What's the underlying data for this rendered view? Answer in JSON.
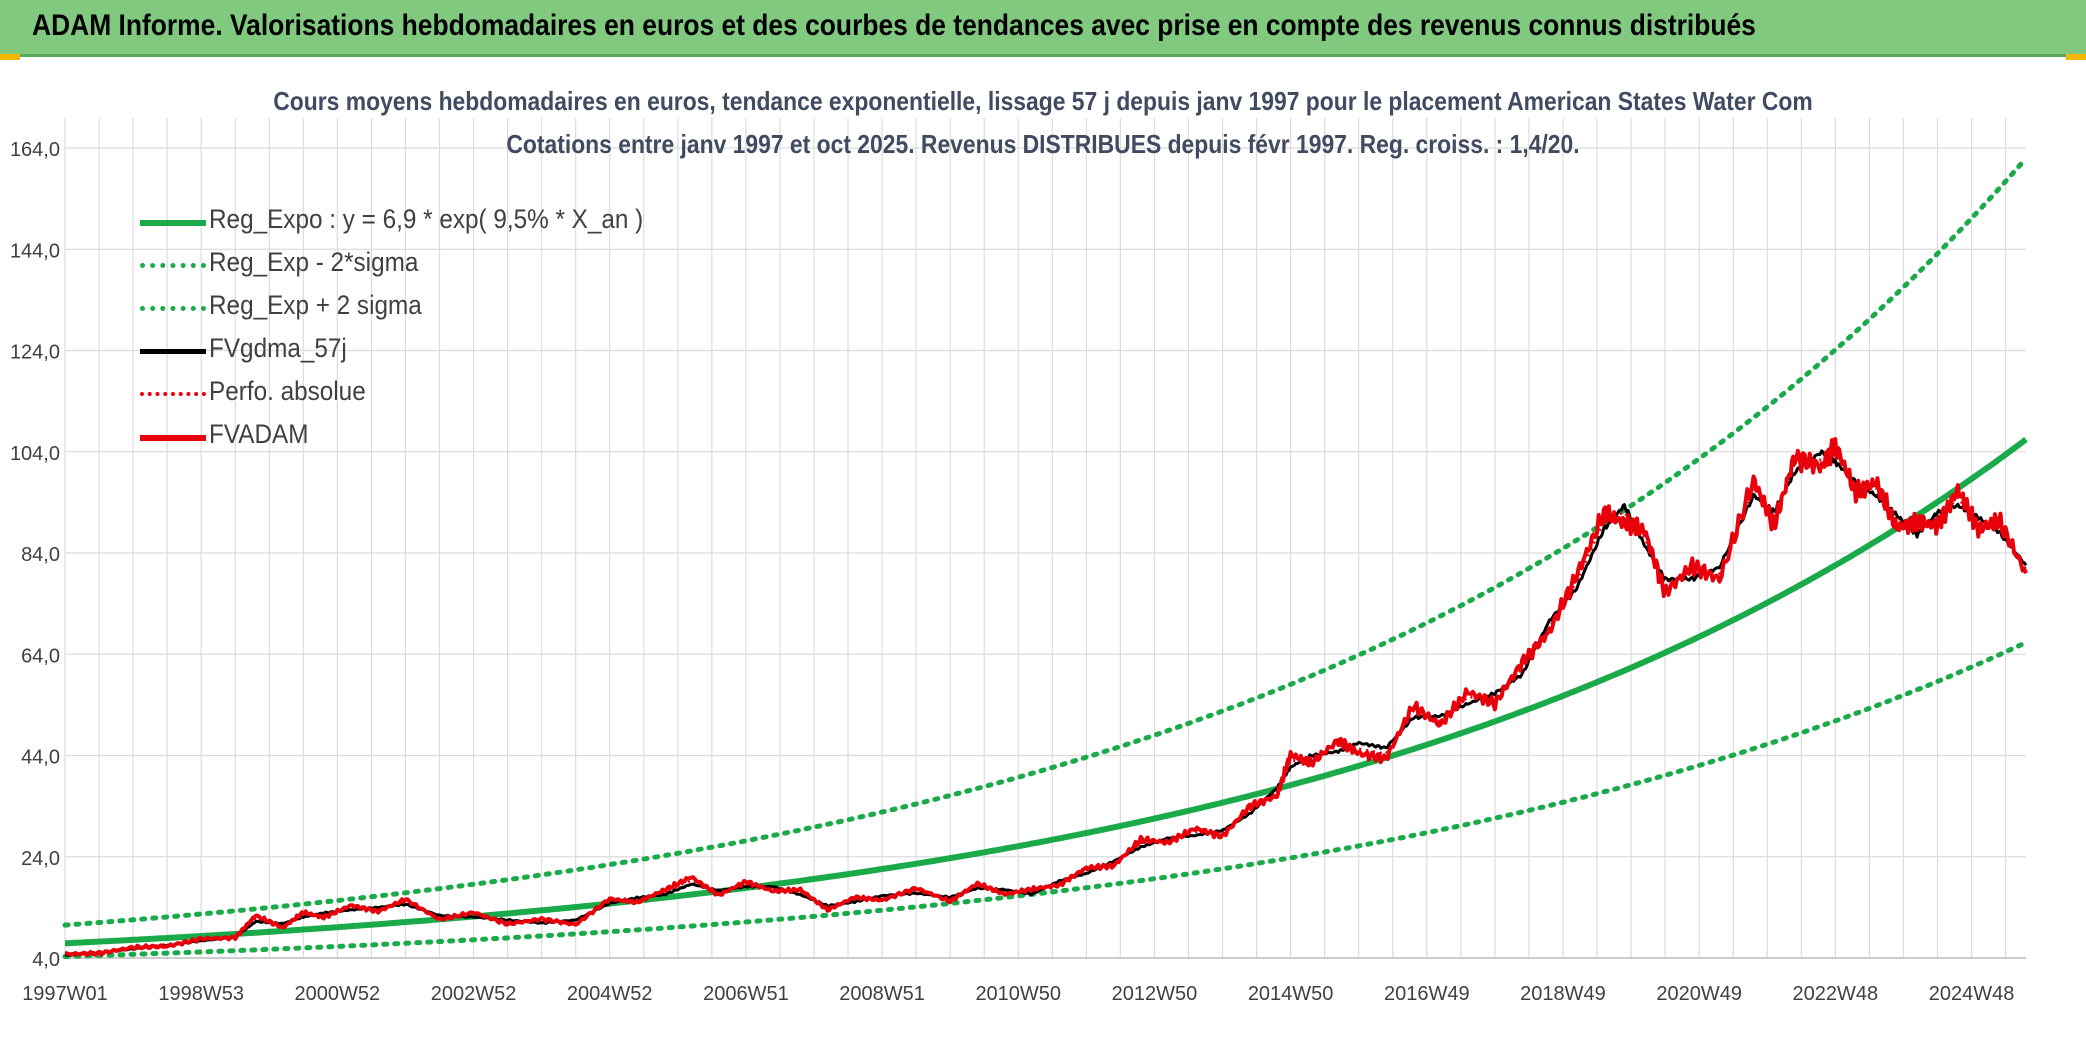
{
  "header": {
    "title": "ADAM Informe. Valorisations hebdomadaires en euros et des courbes de tendances avec prise en compte des revenus connus distribués"
  },
  "chart_data": {
    "type": "line",
    "title": "Cours moyens hebdomadaires en euros, tendance exponentielle, lissage 57 j depuis janv 1997 pour le placement American States Water Com",
    "subtitle": "Cotations entre janv 1997 et oct 2025. Revenus DISTRIBUES depuis févr 1997. Reg. croiss. : 1,4/20.",
    "xlabel": "",
    "ylabel": "",
    "ylim": [
      4.0,
      164.0
    ],
    "yticks": [
      "4,0",
      "24,0",
      "44,0",
      "64,0",
      "84,0",
      "104,0",
      "124,0",
      "144,0",
      "164,0"
    ],
    "xlim": [
      1997.0,
      2025.8
    ],
    "xticks": [
      {
        "label": "1997W01",
        "x": 1997.0
      },
      {
        "label": "1998W53",
        "x": 1999.0
      },
      {
        "label": "2000W52",
        "x": 2001.0
      },
      {
        "label": "2002W52",
        "x": 2003.0
      },
      {
        "label": "2004W52",
        "x": 2005.0
      },
      {
        "label": "2006W51",
        "x": 2007.0
      },
      {
        "label": "2008W51",
        "x": 2009.0
      },
      {
        "label": "2010W50",
        "x": 2011.0
      },
      {
        "label": "2012W50",
        "x": 2013.0
      },
      {
        "label": "2014W50",
        "x": 2015.0
      },
      {
        "label": "2016W49",
        "x": 2017.0
      },
      {
        "label": "2018W49",
        "x": 2019.0
      },
      {
        "label": "2020W49",
        "x": 2021.0
      },
      {
        "label": "2022W48",
        "x": 2023.0
      },
      {
        "label": "2024W48",
        "x": 2025.0
      }
    ],
    "grid": true,
    "legend_position": "top-left",
    "series": [
      {
        "name": "Reg_Expo : y = 6,9 * exp( 9,5% *  X_an )",
        "kind": "exponential-trend",
        "a": 6.9,
        "rate": 0.095,
        "x0": 1997.0,
        "color": "#1aaa4a",
        "style": "solid"
      },
      {
        "name": "Reg_Exp - 2*sigma",
        "kind": "exponential-trend",
        "a": 4.3,
        "rate": 0.095,
        "x0": 1997.0,
        "color": "#1aaa4a",
        "style": "dotted"
      },
      {
        "name": "Reg_Exp + 2 sigma",
        "kind": "exponential-trend",
        "a": 10.5,
        "rate": 0.095,
        "x0": 1997.0,
        "color": "#1aaa4a",
        "style": "dotted"
      },
      {
        "name": "FVgdma_57j",
        "kind": "moving-average",
        "color": "#000000",
        "style": "solid",
        "x": [
          1997.0,
          1997.5,
          1998.0,
          1998.5,
          1999.0,
          1999.5,
          1999.8,
          2000.2,
          2000.5,
          2000.8,
          2001.2,
          2001.6,
          2002.0,
          2002.5,
          2003.0,
          2003.5,
          2004.0,
          2004.5,
          2005.0,
          2005.4,
          2005.8,
          2006.2,
          2006.6,
          2007.0,
          2007.4,
          2007.8,
          2008.2,
          2008.6,
          2009.0,
          2009.5,
          2010.0,
          2010.4,
          2010.8,
          2011.2,
          2011.6,
          2012.0,
          2012.4,
          2012.8,
          2013.2,
          2013.6,
          2014.0,
          2014.4,
          2014.8,
          2015.0,
          2015.3,
          2015.7,
          2016.0,
          2016.4,
          2016.8,
          2017.2,
          2017.6,
          2018.0,
          2018.4,
          2018.8,
          2019.2,
          2019.6,
          2019.9,
          2020.2,
          2020.5,
          2020.9,
          2021.3,
          2021.8,
          2022.1,
          2022.4,
          2022.8,
          2023.0,
          2023.3,
          2023.6,
          2023.9,
          2024.2,
          2024.5,
          2024.8,
          2025.1,
          2025.4,
          2025.8
        ],
        "y": [
          4.5,
          5.0,
          5.8,
          6.5,
          7.4,
          8.1,
          11.2,
          10.8,
          12.1,
          12.9,
          13.5,
          14.0,
          14.6,
          12.4,
          12.1,
          11.5,
          10.9,
          11.5,
          14.8,
          15.9,
          16.5,
          18.6,
          17.3,
          18.1,
          18.1,
          16.5,
          14.3,
          15.1,
          16.3,
          16.8,
          16.0,
          17.8,
          17.5,
          16.6,
          19.2,
          20.7,
          23.1,
          25.9,
          27.7,
          28.2,
          29.2,
          32.5,
          37.6,
          41.7,
          44.0,
          44.8,
          46.5,
          45.5,
          51.5,
          51.8,
          54.2,
          56.3,
          60.0,
          70.6,
          77.0,
          88.7,
          93.4,
          85.5,
          78.8,
          78.9,
          81.2,
          95.4,
          92.1,
          99.9,
          104.0,
          102.0,
          98.0,
          95.3,
          91.5,
          87.6,
          92.0,
          93.4,
          91.0,
          88.2,
          81.6
        ]
      },
      {
        "name": "Perfo. absolue",
        "kind": "performance",
        "color": "#e8000b",
        "style": "dotted",
        "x": [
          1997.0,
          1997.5,
          1998.0,
          1998.5,
          1999.0,
          1999.5,
          1999.8,
          2000.2,
          2000.5,
          2000.8,
          2001.2,
          2001.6,
          2002.0,
          2002.5,
          2003.0,
          2003.5,
          2004.0,
          2004.5,
          2005.0,
          2005.4,
          2005.8,
          2006.2,
          2006.6,
          2007.0,
          2007.4,
          2007.8,
          2008.2,
          2008.6,
          2009.0,
          2009.5,
          2010.0,
          2010.4,
          2010.8,
          2011.2,
          2011.6,
          2012.0,
          2012.4,
          2012.8,
          2013.2,
          2013.6,
          2014.0,
          2014.4,
          2014.8,
          2015.0,
          2015.3,
          2015.7,
          2016.0,
          2016.4,
          2016.8,
          2017.2,
          2017.6,
          2018.0,
          2018.4,
          2018.8,
          2019.2,
          2019.6,
          2019.9,
          2020.2,
          2020.5,
          2020.9,
          2021.3,
          2021.8,
          2022.1,
          2022.4,
          2022.8,
          2023.0,
          2023.3,
          2023.6,
          2023.9,
          2024.2,
          2024.5,
          2024.8,
          2025.1,
          2025.4,
          2025.8
        ],
        "y": [
          4.6,
          5.2,
          5.9,
          6.7,
          7.6,
          8.4,
          11.8,
          10.4,
          12.6,
          12.4,
          14.0,
          13.6,
          15.2,
          12.0,
          12.6,
          11.1,
          11.3,
          11.0,
          15.3,
          15.4,
          17.0,
          19.4,
          16.8,
          18.7,
          17.6,
          17.1,
          13.9,
          15.6,
          15.8,
          17.4,
          15.6,
          18.3,
          17.0,
          17.2,
          18.8,
          21.4,
          22.6,
          26.8,
          27.2,
          29.0,
          28.6,
          33.4,
          36.8,
          43.0,
          43.1,
          46.0,
          45.3,
          44.3,
          52.8,
          50.7,
          55.6,
          55.1,
          61.4,
          69.3,
          78.4,
          90.3,
          92.1,
          87.1,
          77.5,
          80.3,
          79.9,
          97.0,
          90.6,
          101.6,
          102.4,
          103.5,
          96.7,
          96.8,
          90.1,
          89.0,
          90.6,
          95.0,
          89.6,
          89.5,
          80.7
        ]
      },
      {
        "name": "FVADAM",
        "kind": "weekly-price",
        "color": "#e8000b",
        "style": "solid",
        "x": [
          1997.0,
          1997.5,
          1998.0,
          1998.5,
          1999.0,
          1999.5,
          1999.8,
          2000.2,
          2000.5,
          2000.8,
          2001.2,
          2001.6,
          2002.0,
          2002.5,
          2003.0,
          2003.5,
          2004.0,
          2004.5,
          2005.0,
          2005.4,
          2005.8,
          2006.2,
          2006.6,
          2007.0,
          2007.4,
          2007.8,
          2008.2,
          2008.6,
          2009.0,
          2009.5,
          2010.0,
          2010.4,
          2010.8,
          2011.2,
          2011.6,
          2012.0,
          2012.4,
          2012.8,
          2013.2,
          2013.6,
          2014.0,
          2014.4,
          2014.8,
          2015.0,
          2015.3,
          2015.7,
          2016.0,
          2016.4,
          2016.8,
          2017.2,
          2017.6,
          2018.0,
          2018.4,
          2018.8,
          2019.2,
          2019.6,
          2019.9,
          2020.2,
          2020.5,
          2020.9,
          2021.3,
          2021.8,
          2022.1,
          2022.4,
          2022.8,
          2023.0,
          2023.3,
          2023.6,
          2023.9,
          2024.2,
          2024.5,
          2024.8,
          2025.1,
          2025.4,
          2025.8
        ],
        "y": [
          4.8,
          4.9,
          6.1,
          6.3,
          7.8,
          8.0,
          12.4,
          10.0,
          13.0,
          12.0,
          14.4,
          13.2,
          15.6,
          11.6,
          13.0,
          10.7,
          11.7,
          10.6,
          15.7,
          15.0,
          17.4,
          20.0,
          16.4,
          19.1,
          17.2,
          17.5,
          13.5,
          16.0,
          15.4,
          17.8,
          15.2,
          18.7,
          16.6,
          17.6,
          18.4,
          21.8,
          22.2,
          27.4,
          26.8,
          29.6,
          28.0,
          34.0,
          36.0,
          44.2,
          42.4,
          47.0,
          44.4,
          43.4,
          53.8,
          50.0,
          56.6,
          54.2,
          62.4,
          68.5,
          79.6,
          91.8,
          90.0,
          88.4,
          76.2,
          81.5,
          78.8,
          98.4,
          89.3,
          103.0,
          101.0,
          105.5,
          95.8,
          97.9,
          88.9,
          90.2,
          89.4,
          96.5,
          88.6,
          90.4,
          80.0
        ]
      }
    ]
  }
}
